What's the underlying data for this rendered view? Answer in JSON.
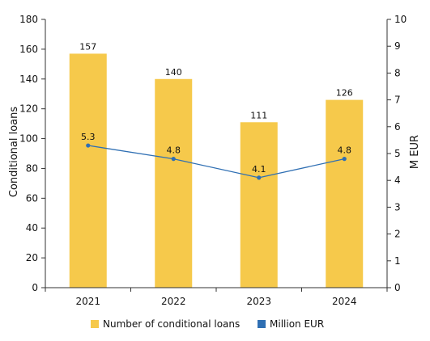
{
  "chart_data": {
    "type": "bar",
    "categories": [
      "2021",
      "2022",
      "2023",
      "2024"
    ],
    "series": [
      {
        "name": "Number of conditional loans",
        "type": "bar",
        "axis": "left",
        "color": "#F6C94B",
        "values": [
          157,
          140,
          111,
          126
        ],
        "labels": [
          "157",
          "140",
          "111",
          "126"
        ]
      },
      {
        "name": "Million EUR",
        "type": "line",
        "axis": "right",
        "color": "#2F6FB3",
        "values": [
          5.3,
          4.8,
          4.1,
          4.8
        ],
        "labels": [
          "5.3",
          "4.8",
          "4.1",
          "4.8"
        ]
      }
    ],
    "ylabel": "Conditional loans",
    "y2label": "M EUR",
    "ylim": [
      0,
      180
    ],
    "y2lim": [
      0,
      10
    ],
    "yticks": [
      "0",
      "20",
      "40",
      "60",
      "80",
      "100",
      "120",
      "140",
      "160",
      "180"
    ],
    "y2ticks": [
      "0",
      "1",
      "2",
      "3",
      "4",
      "5",
      "6",
      "7",
      "8",
      "9",
      "10"
    ],
    "grid": false,
    "legend": "bottom"
  }
}
